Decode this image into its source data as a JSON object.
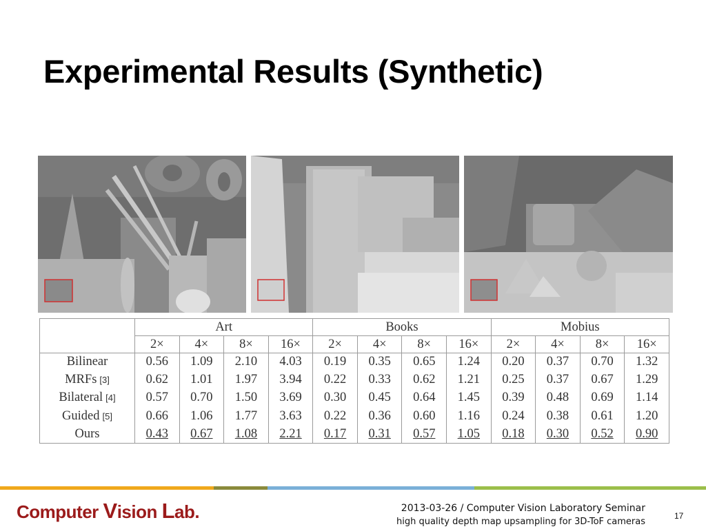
{
  "slide": {
    "title": "Experimental Results (Synthetic)",
    "page_number": "17"
  },
  "images": [
    {
      "name": "art-depth-map",
      "description": "depth map"
    },
    {
      "name": "books-depth-map",
      "description": "depth map"
    },
    {
      "name": "mobius-depth-map",
      "description": "depth map"
    }
  ],
  "table": {
    "datasets": [
      "Art",
      "Books",
      "Mobius"
    ],
    "scales": [
      "2×",
      "4×",
      "8×",
      "16×"
    ],
    "rows": [
      {
        "method": "Bilinear",
        "ref": "",
        "values": [
          "0.56",
          "1.09",
          "2.10",
          "4.03",
          "0.19",
          "0.35",
          "0.65",
          "1.24",
          "0.20",
          "0.37",
          "0.70",
          "1.32"
        ]
      },
      {
        "method": "MRFs",
        "ref": "[3]",
        "values": [
          "0.62",
          "1.01",
          "1.97",
          "3.94",
          "0.22",
          "0.33",
          "0.62",
          "1.21",
          "0.25",
          "0.37",
          "0.67",
          "1.29"
        ]
      },
      {
        "method": "Bilateral",
        "ref": "[4]",
        "values": [
          "0.57",
          "0.70",
          "1.50",
          "3.69",
          "0.30",
          "0.45",
          "0.64",
          "1.45",
          "0.39",
          "0.48",
          "0.69",
          "1.14"
        ]
      },
      {
        "method": "Guided",
        "ref": "[5]",
        "values": [
          "0.66",
          "1.06",
          "1.77",
          "3.63",
          "0.22",
          "0.36",
          "0.60",
          "1.16",
          "0.24",
          "0.38",
          "0.61",
          "1.20"
        ]
      },
      {
        "method": "Ours",
        "ref": "",
        "best": true,
        "values": [
          "0.43",
          "0.67",
          "1.08",
          "2.21",
          "0.17",
          "0.31",
          "0.57",
          "1.05",
          "0.18",
          "0.30",
          "0.52",
          "0.90"
        ]
      }
    ]
  },
  "footer": {
    "logo": {
      "part1": "Computer ",
      "part2": "V",
      "part3": "ision ",
      "part4": "L",
      "part5": "ab."
    },
    "line1": "2013-03-26 / Computer Vision Laboratory Seminar",
    "line2": "high quality depth map upsampling for 3D-ToF cameras",
    "bar_colors": [
      "#f0a81c",
      "#8a8a3c",
      "#7ab0d8",
      "#9bbe4a"
    ]
  }
}
